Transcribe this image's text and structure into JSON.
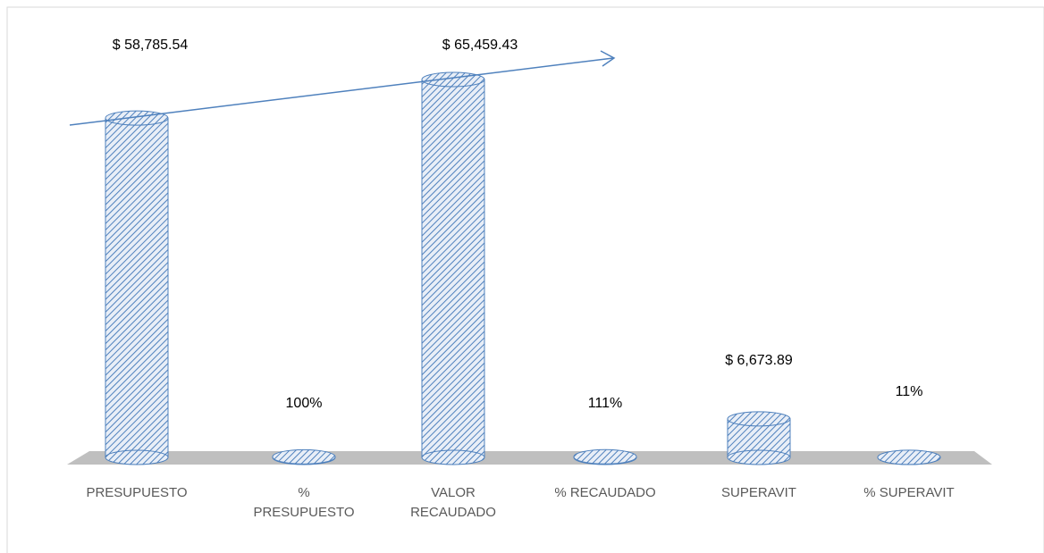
{
  "chart_data": {
    "type": "bar",
    "categories": [
      "PRESUPUESTO",
      "% PRESUPUESTO",
      "VALOR RECAUDADO",
      "% RECAUDADO",
      "SUPERAVIT",
      "% SUPERAVIT"
    ],
    "values": [
      58785.54,
      100,
      65459.43,
      111,
      6673.89,
      11
    ],
    "value_labels": [
      "$ 58,785.54",
      "100%",
      "$  65,459.43",
      "111%",
      "$ 6,673.89",
      "11%"
    ],
    "color": "#4f81bd"
  }
}
